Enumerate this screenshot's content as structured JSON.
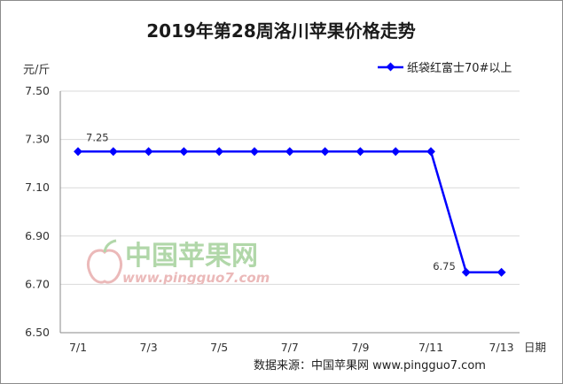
{
  "chart_data": {
    "type": "line",
    "title": "2019年第28周洛川苹果价格走势",
    "ylabel": "元/斤",
    "xlabel": "日期",
    "categories": [
      "7/1",
      "7/2",
      "7/3",
      "7/4",
      "7/5",
      "7/6",
      "7/7",
      "7/8",
      "7/9",
      "7/10",
      "7/11",
      "7/12",
      "7/13"
    ],
    "x_tick_labels": [
      "7/1",
      "7/3",
      "7/5",
      "7/7",
      "7/9",
      "7/11",
      "7/13"
    ],
    "y_tick_labels": [
      "7.50",
      "7.30",
      "7.10",
      "6.90",
      "6.70",
      "6.50"
    ],
    "ylim": [
      6.5,
      7.5
    ],
    "series": [
      {
        "name": "纸袋红富士70#以上",
        "values": [
          7.25,
          7.25,
          7.25,
          7.25,
          7.25,
          7.25,
          7.25,
          7.25,
          7.25,
          7.25,
          7.25,
          6.75,
          6.75
        ],
        "color": "#0000ff"
      }
    ],
    "annotations": [
      {
        "text": "7.25",
        "index": 0
      },
      {
        "text": "6.75",
        "index": 11
      }
    ],
    "grid": "horizontal",
    "legend_position": "top-right"
  },
  "source": "数据来源：中国苹果网 www.pingguo7.com",
  "watermark": {
    "name": "中国苹果网",
    "url": "www.pingguo7.com"
  },
  "colors": {
    "line": "#0000ff",
    "grid": "#d9d9d9",
    "axis": "#888888",
    "frame": "#8c8c8c",
    "watermark_red": "#e9b2b2",
    "watermark_green": "#a9d3a0"
  }
}
